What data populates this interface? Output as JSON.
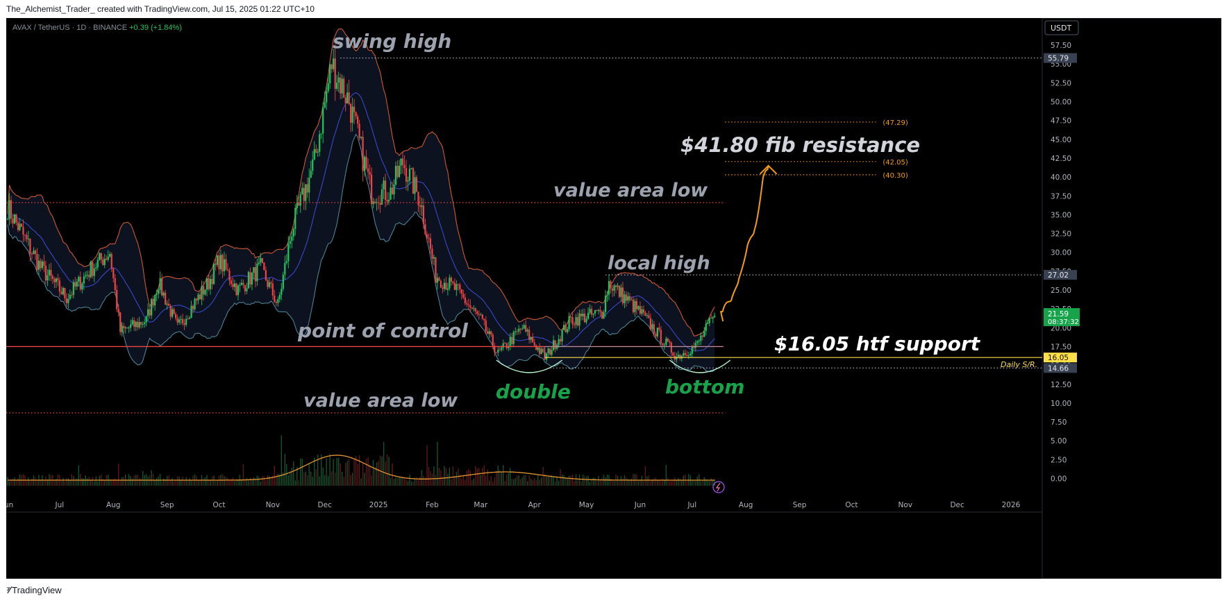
{
  "header": {
    "text": "The_Alchemist_Trader_ created with TradingView.com, Jul 15, 2025 01:22 UTC+10"
  },
  "symbol": {
    "name": "AVAX / TetherUS · 1D · BINANCE",
    "change": "+0.39 (+1.84%)"
  },
  "footer": {
    "brand": "TradingView"
  },
  "colors": {
    "up": "#22c55e",
    "down": "#ef4444",
    "band": "#e06030",
    "midline": "#3b4fd8",
    "accent": "#f59e0b",
    "support": "#fde047",
    "annotation": "#9ca3af",
    "green_text": "#16a34a"
  },
  "chart_data": {
    "type": "candlestick",
    "currency_label": "USDT",
    "y_ticks": [
      "57.50",
      "55.00",
      "52.50",
      "50.00",
      "47.50",
      "45.00",
      "42.50",
      "40.00",
      "37.50",
      "35.00",
      "32.50",
      "30.00",
      "27.50",
      "25.00",
      "22.50",
      "20.00",
      "17.50",
      "15.00",
      "12.50",
      "10.00",
      "7.50",
      "5.00",
      "2.50",
      "0.00"
    ],
    "x_ticks": [
      {
        "date": "2024-06-01",
        "label": "Jun"
      },
      {
        "date": "2024-07-01",
        "label": "Jul"
      },
      {
        "date": "2024-08-01",
        "label": "Aug"
      },
      {
        "date": "2024-09-01",
        "label": "Sep"
      },
      {
        "date": "2024-10-01",
        "label": "Oct"
      },
      {
        "date": "2024-11-01",
        "label": "Nov"
      },
      {
        "date": "2024-12-01",
        "label": "Dec"
      },
      {
        "date": "2025-01-01",
        "label": "2025"
      },
      {
        "date": "2025-02-01",
        "label": "Feb"
      },
      {
        "date": "2025-03-01",
        "label": "Mar"
      },
      {
        "date": "2025-04-01",
        "label": "Apr"
      },
      {
        "date": "2025-05-01",
        "label": "May"
      },
      {
        "date": "2025-06-01",
        "label": "Jun"
      },
      {
        "date": "2025-07-01",
        "label": "Jul"
      },
      {
        "date": "2025-08-01",
        "label": "Aug"
      },
      {
        "date": "2025-09-01",
        "label": "Sep"
      },
      {
        "date": "2025-10-01",
        "label": "Oct"
      },
      {
        "date": "2025-11-01",
        "label": "Nov"
      },
      {
        "date": "2025-12-01",
        "label": "Dec"
      },
      {
        "date": "2026-01-01",
        "label": "2026"
      }
    ],
    "price_path": [
      {
        "date": "2024-06-01",
        "close": 36
      },
      {
        "date": "2024-06-20",
        "close": 28
      },
      {
        "date": "2024-07-05",
        "close": 24
      },
      {
        "date": "2024-07-20",
        "close": 28
      },
      {
        "date": "2024-07-30",
        "close": 30
      },
      {
        "date": "2024-08-05",
        "close": 19.5
      },
      {
        "date": "2024-08-20",
        "close": 21
      },
      {
        "date": "2024-08-27",
        "close": 26
      },
      {
        "date": "2024-09-07",
        "close": 20
      },
      {
        "date": "2024-09-25",
        "close": 26
      },
      {
        "date": "2024-10-01",
        "close": 29
      },
      {
        "date": "2024-10-12",
        "close": 25
      },
      {
        "date": "2024-10-25",
        "close": 28
      },
      {
        "date": "2024-11-04",
        "close": 23
      },
      {
        "date": "2024-11-12",
        "close": 33
      },
      {
        "date": "2024-11-25",
        "close": 42
      },
      {
        "date": "2024-12-05",
        "close": 55
      },
      {
        "date": "2024-12-15",
        "close": 50
      },
      {
        "date": "2024-12-28",
        "close": 38
      },
      {
        "date": "2025-01-08",
        "close": 38
      },
      {
        "date": "2025-01-15",
        "close": 42
      },
      {
        "date": "2025-01-25",
        "close": 37
      },
      {
        "date": "2025-02-03",
        "close": 27
      },
      {
        "date": "2025-02-15",
        "close": 25
      },
      {
        "date": "2025-03-01",
        "close": 21
      },
      {
        "date": "2025-03-11",
        "close": 16.5
      },
      {
        "date": "2025-03-25",
        "close": 20
      },
      {
        "date": "2025-04-07",
        "close": 16
      },
      {
        "date": "2025-04-22",
        "close": 21
      },
      {
        "date": "2025-05-10",
        "close": 22
      },
      {
        "date": "2025-05-14",
        "close": 26
      },
      {
        "date": "2025-06-01",
        "close": 22
      },
      {
        "date": "2025-06-22",
        "close": 16.2
      },
      {
        "date": "2025-07-03",
        "close": 17.5
      },
      {
        "date": "2025-07-14",
        "close": 21.59
      }
    ],
    "projection": [
      {
        "date": "2025-07-19",
        "value": 22.5
      },
      {
        "date": "2025-07-24",
        "value": 24
      },
      {
        "date": "2025-07-28",
        "value": 26.5
      },
      {
        "date": "2025-08-02",
        "value": 31
      },
      {
        "date": "2025-08-06",
        "value": 33
      },
      {
        "date": "2025-08-11",
        "value": 40
      },
      {
        "date": "2025-08-14",
        "value": 41.5
      }
    ],
    "levels": [
      {
        "price": 55.79,
        "label": "55.79",
        "style": "dotted-white",
        "from": "2024-12-10"
      },
      {
        "price": 27.02,
        "label": "27.02",
        "style": "dotted-white",
        "from": "2025-05-12"
      },
      {
        "price": 36.6,
        "style": "dotted-red",
        "to": "2025-07-20"
      },
      {
        "price": 17.5,
        "style": "solid-red",
        "to": "2025-07-19"
      },
      {
        "price": 16.05,
        "label": "16.05",
        "style": "solid-yellow",
        "from": "2025-04-07"
      },
      {
        "price": 14.66,
        "label": "14.66",
        "style": "dotted-white",
        "from": "2025-04-10"
      },
      {
        "price": 8.7,
        "style": "dotted-red",
        "to": "2025-07-20"
      }
    ],
    "fib_levels": [
      {
        "price": 47.29,
        "label": "(47.29)"
      },
      {
        "price": 42.05,
        "label": "(42.05)"
      },
      {
        "price": 40.3,
        "label": "(40.30)"
      }
    ],
    "last_price": {
      "value": 21.59,
      "label": "21.59",
      "countdown": "08:37:32"
    },
    "daily_sr_label": "Daily S/R.",
    "annotations": {
      "swing_high": "swing high",
      "fib_resistance": "$41.80 fib resistance",
      "value_area_low_top": "value area low",
      "local_high": "local high",
      "point_of_control": "point of control",
      "htf_support": "$16.05 htf support",
      "double": "double",
      "bottom": "bottom",
      "value_area_low_bottom": "value area low"
    }
  }
}
